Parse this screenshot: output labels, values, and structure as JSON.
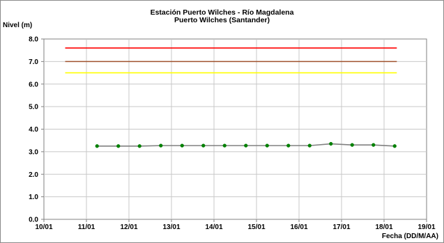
{
  "chart_data": {
    "type": "line",
    "title": "Estación Puerto Wilches - Río Magdalena",
    "subtitle": "Puerto Wilches (Santander)",
    "ylabel": "Nivel (m)",
    "xlabel": "Fecha (DD/M/AA)",
    "ylim": [
      0,
      8
    ],
    "xlim": [
      0,
      9
    ],
    "y_ticks": [
      0.0,
      1.0,
      2.0,
      3.0,
      4.0,
      5.0,
      6.0,
      7.0,
      8.0
    ],
    "y_tick_labels": [
      "0.0",
      "1.0",
      "2.0",
      "3.0",
      "4.0",
      "5.0",
      "6.0",
      "7.0",
      "8.0"
    ],
    "x_ticks": [
      0,
      1,
      2,
      3,
      4,
      5,
      6,
      7,
      8,
      9
    ],
    "x_tick_labels": [
      "10/01",
      "11/01",
      "12/01",
      "13/01",
      "14/01",
      "15/01",
      "16/01",
      "17/01",
      "18/01",
      "19/01"
    ],
    "grid": true,
    "threshold_lines": [
      {
        "value": 7.6,
        "x_range": [
          0.5,
          8.3
        ],
        "color": "#ff0000"
      },
      {
        "value": 7.0,
        "x_range": [
          0.5,
          8.3
        ],
        "color": "#a0522d"
      },
      {
        "value": 6.5,
        "x_range": [
          0.5,
          8.3
        ],
        "color": "#ffff00"
      }
    ],
    "series": [
      {
        "line_color": "#808080",
        "marker_color": "#008000",
        "x": [
          1.25,
          1.75,
          2.25,
          2.75,
          3.25,
          3.75,
          4.25,
          4.75,
          5.25,
          5.75,
          6.25,
          6.75,
          7.25,
          7.75,
          8.25
        ],
        "values": [
          3.25,
          3.25,
          3.25,
          3.27,
          3.27,
          3.27,
          3.27,
          3.27,
          3.27,
          3.27,
          3.27,
          3.35,
          3.3,
          3.3,
          3.25
        ]
      }
    ]
  }
}
